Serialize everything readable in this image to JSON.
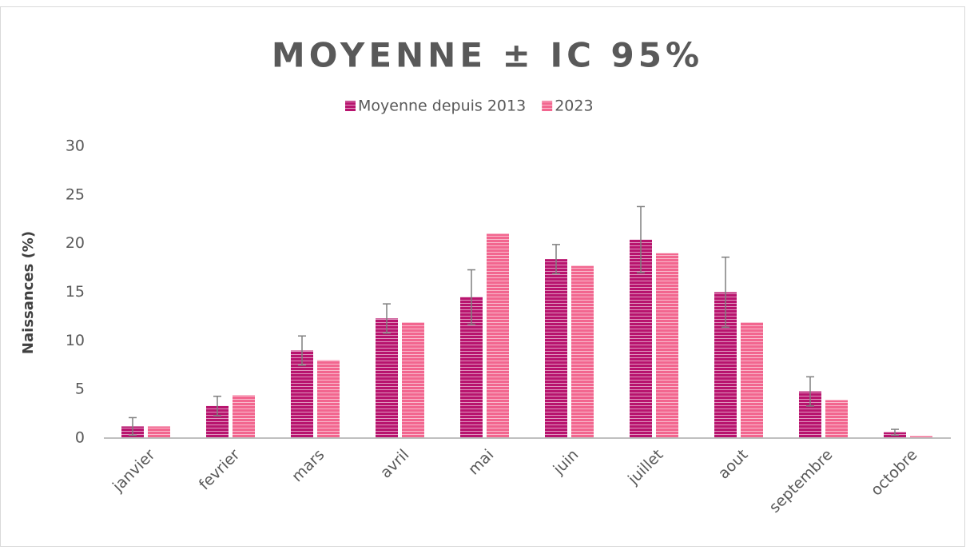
{
  "chart_data": {
    "type": "bar",
    "title": "MOYENNE ± IC 95%",
    "y_label": "Naissances (%)",
    "categories": [
      "janvier",
      "fevrier",
      "mars",
      "avril",
      "mai",
      "juin",
      "juillet",
      "aout",
      "septembre",
      "octobre"
    ],
    "series": [
      {
        "name": "Moyenne depuis 2013",
        "color": "#b8146e",
        "values": [
          1.2,
          3.3,
          9.0,
          12.3,
          14.5,
          18.4,
          20.4,
          15.0,
          4.8,
          0.6
        ],
        "errors": [
          0.9,
          1.0,
          1.5,
          1.5,
          2.8,
          1.5,
          3.4,
          3.6,
          1.5,
          0.3
        ]
      },
      {
        "name": "2023",
        "color": "#f2668f",
        "values": [
          1.2,
          4.4,
          8.0,
          11.9,
          21.0,
          17.7,
          19.0,
          11.9,
          3.9,
          0.2
        ]
      }
    ],
    "ylim": [
      0,
      30
    ],
    "yticks": [
      0,
      5,
      10,
      15,
      20,
      25,
      30
    ],
    "grid": false,
    "legend": "top"
  }
}
